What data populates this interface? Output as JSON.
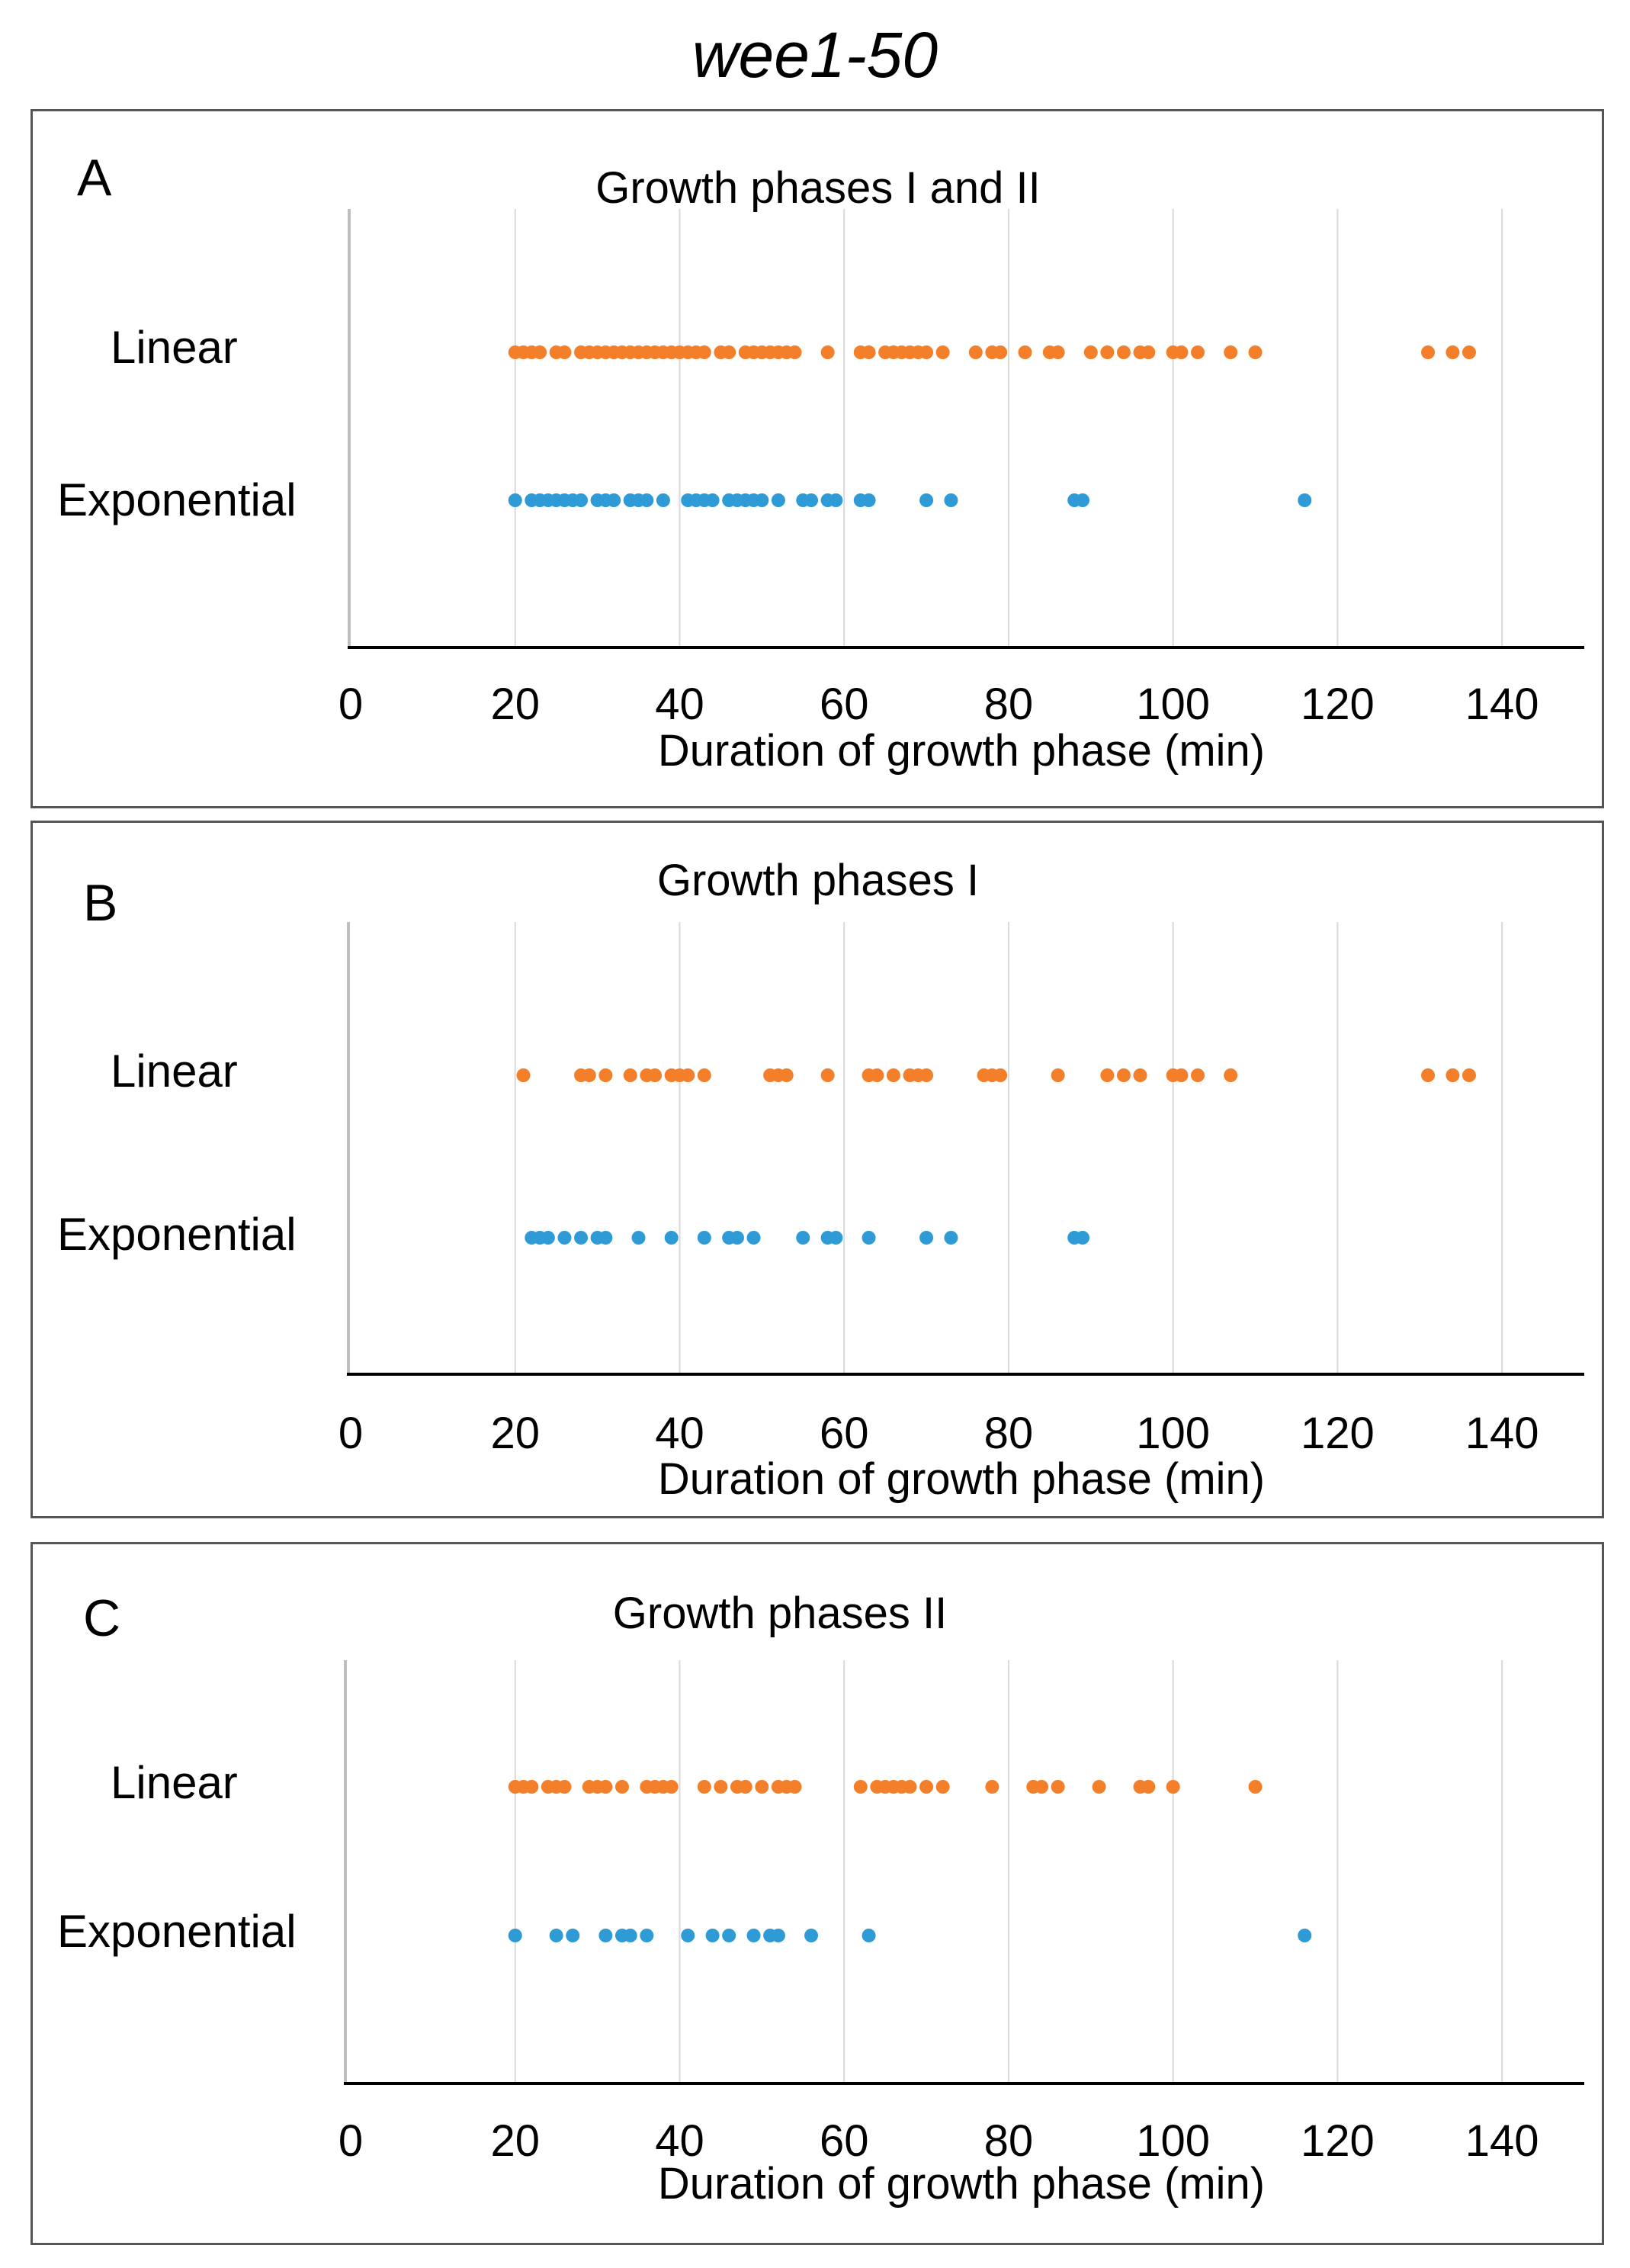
{
  "figure_title": "wee1-50",
  "colors": {
    "linear": "#F47F2B",
    "exponential": "#2E9BD6",
    "gridline": "#D9D9D9",
    "axis": "#000000",
    "yaxis": "#BFBFBF",
    "panel_border": "#555555"
  },
  "chart_data": [
    {
      "type": "scatter",
      "panel_label": "A",
      "title": "Growth phases I and II",
      "xlabel": "Duration of growth phase (min)",
      "ylabel": "",
      "xlim": [
        0,
        150
      ],
      "xticks": [
        0,
        20,
        40,
        60,
        80,
        100,
        120,
        140
      ],
      "grid": true,
      "categories": [
        "Linear",
        "Exponential"
      ],
      "series": [
        {
          "name": "Linear",
          "color": "#F47F2B",
          "values": [
            20,
            21,
            22,
            23,
            25,
            26,
            28,
            29,
            30,
            31,
            32,
            33,
            34,
            35,
            36,
            37,
            38,
            39,
            40,
            41,
            42,
            43,
            45,
            46,
            48,
            49,
            50,
            51,
            52,
            53,
            54,
            58,
            62,
            63,
            65,
            66,
            67,
            68,
            69,
            70,
            72,
            76,
            78,
            79,
            82,
            85,
            86,
            90,
            92,
            94,
            96,
            97,
            100,
            101,
            103,
            107,
            110,
            131,
            134,
            136
          ]
        },
        {
          "name": "Exponential",
          "color": "#2E9BD6",
          "values": [
            20,
            22,
            23,
            24,
            25,
            26,
            27,
            28,
            30,
            31,
            32,
            34,
            35,
            36,
            38,
            41,
            42,
            43,
            44,
            46,
            47,
            48,
            49,
            50,
            52,
            55,
            56,
            58,
            59,
            62,
            63,
            70,
            73,
            88,
            89,
            116
          ]
        }
      ]
    },
    {
      "type": "scatter",
      "panel_label": "B",
      "title": "Growth phases I",
      "xlabel": "Duration of growth phase (min)",
      "ylabel": "",
      "xlim": [
        0,
        150
      ],
      "xticks": [
        0,
        20,
        40,
        60,
        80,
        100,
        120,
        140
      ],
      "grid": true,
      "categories": [
        "Linear",
        "Exponential"
      ],
      "series": [
        {
          "name": "Linear",
          "color": "#F47F2B",
          "values": [
            21,
            28,
            29,
            31,
            34,
            36,
            37,
            39,
            40,
            41,
            43,
            51,
            52,
            53,
            58,
            63,
            64,
            66,
            68,
            69,
            70,
            77,
            78,
            79,
            86,
            92,
            94,
            96,
            100,
            101,
            103,
            107,
            131,
            134,
            136
          ]
        },
        {
          "name": "Exponential",
          "color": "#2E9BD6",
          "values": [
            22,
            23,
            24,
            26,
            28,
            30,
            31,
            35,
            39,
            43,
            46,
            47,
            49,
            55,
            58,
            59,
            63,
            70,
            73,
            88,
            89
          ]
        }
      ]
    },
    {
      "type": "scatter",
      "panel_label": "C",
      "title": "Growth phases II",
      "xlabel": "Duration of growth phase (min)",
      "ylabel": "",
      "xlim": [
        0,
        150
      ],
      "xticks": [
        0,
        20,
        40,
        60,
        80,
        100,
        120,
        140
      ],
      "grid": true,
      "categories": [
        "Linear",
        "Exponential"
      ],
      "series": [
        {
          "name": "Linear",
          "color": "#F47F2B",
          "values": [
            20,
            21,
            22,
            24,
            25,
            26,
            29,
            30,
            31,
            33,
            36,
            37,
            38,
            39,
            43,
            45,
            47,
            48,
            50,
            52,
            53,
            54,
            62,
            64,
            65,
            66,
            67,
            68,
            70,
            72,
            78,
            83,
            84,
            86,
            91,
            96,
            97,
            100,
            110
          ]
        },
        {
          "name": "Exponential",
          "color": "#2E9BD6",
          "values": [
            20,
            25,
            27,
            31,
            33,
            34,
            36,
            41,
            44,
            46,
            49,
            51,
            52,
            56,
            63,
            116
          ]
        }
      ]
    }
  ]
}
